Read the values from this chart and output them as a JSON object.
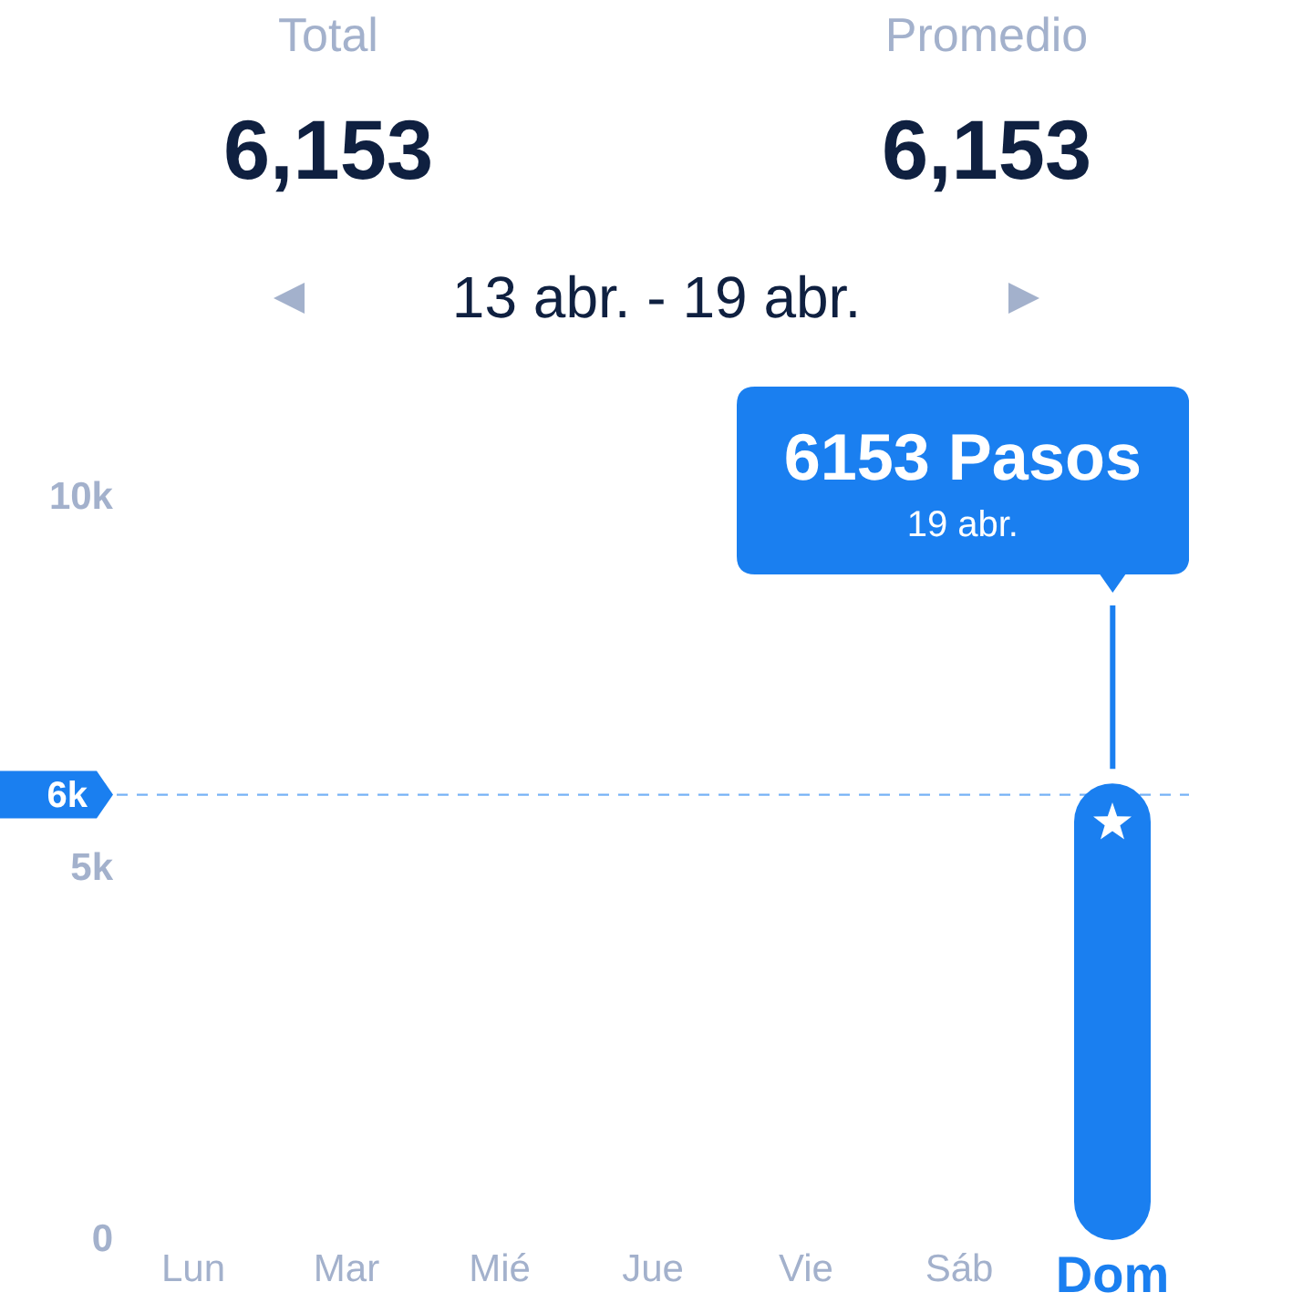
{
  "chart_data": {
    "type": "bar",
    "title": "13 abr. - 19 abr.",
    "categories": [
      "Lun",
      "Mar",
      "Mié",
      "Jue",
      "Vie",
      "Sáb",
      "Dom"
    ],
    "values": [
      null,
      null,
      null,
      null,
      null,
      null,
      6153
    ],
    "color": "#1a7ff0",
    "ylim": [
      0,
      10000
    ],
    "yticks": [
      0,
      {
        "value": 5000,
        "label": "5k"
      },
      {
        "value": 10000,
        "label": "10k"
      }
    ],
    "grid": false,
    "legend": false,
    "ref_lines": [
      {
        "axis": "y",
        "value": 6000,
        "label": "6k",
        "color": "#1a7ff0",
        "line_style": "dashed"
      }
    ],
    "annotations": [
      "Total",
      "6,153",
      "Promedio",
      "6,153",
      "6153 Pasos",
      "19 abr."
    ]
  }
}
